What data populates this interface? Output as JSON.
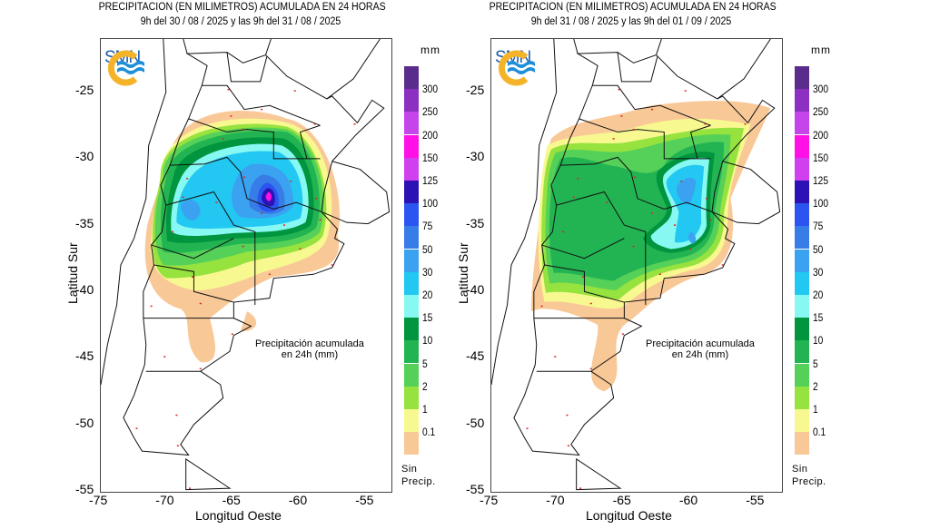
{
  "maps": [
    {
      "title": "PRECIPITACION (EN MILIMETROS) ACUMULADA EN 24 HORAS",
      "subtitle": "9h del 30 / 08 / 2025  y las 9h del 31 / 08 / 2025",
      "logo_text": "SMN",
      "note_line1": "Precipitación acumulada",
      "note_line2": "en 24h (mm)"
    },
    {
      "title": "PRECIPITACION (EN MILIMETROS) ACUMULADA EN 24 HORAS",
      "subtitle": "9h del 31 / 08 / 2025  y las 9h del 01 / 09 / 2025",
      "logo_text": "SMN",
      "note_line1": "Precipitación acumulada",
      "note_line2": "en 24h (mm)"
    }
  ],
  "axes": {
    "ylabel": "Latitud Sur",
    "xlabel": "Longitud Oeste",
    "yticks": [
      "-25",
      "-30",
      "-35",
      "-40",
      "-45",
      "-50",
      "-55"
    ],
    "xticks": [
      "-75",
      "-70",
      "-65",
      "-60",
      "-55"
    ]
  },
  "legend": {
    "unit": "mm",
    "labels": [
      "300",
      "250",
      "200",
      "150",
      "125",
      "100",
      "75",
      "50",
      "30",
      "20",
      "15",
      "10",
      "5",
      "2",
      "1",
      "0.1"
    ],
    "colors": [
      "#5a2d8c",
      "#8b30c0",
      "#c445ea",
      "#ff10e6",
      "#d040ee",
      "#2c12b4",
      "#2b54f0",
      "#387ce8",
      "#3aa2f0",
      "#22c8f2",
      "#88f8f2",
      "#00953e",
      "#22b452",
      "#55d058",
      "#96e23e",
      "#f8f890",
      "#f9c897"
    ],
    "no_precip_line1": "Sin",
    "no_precip_line2": "Precip."
  }
}
